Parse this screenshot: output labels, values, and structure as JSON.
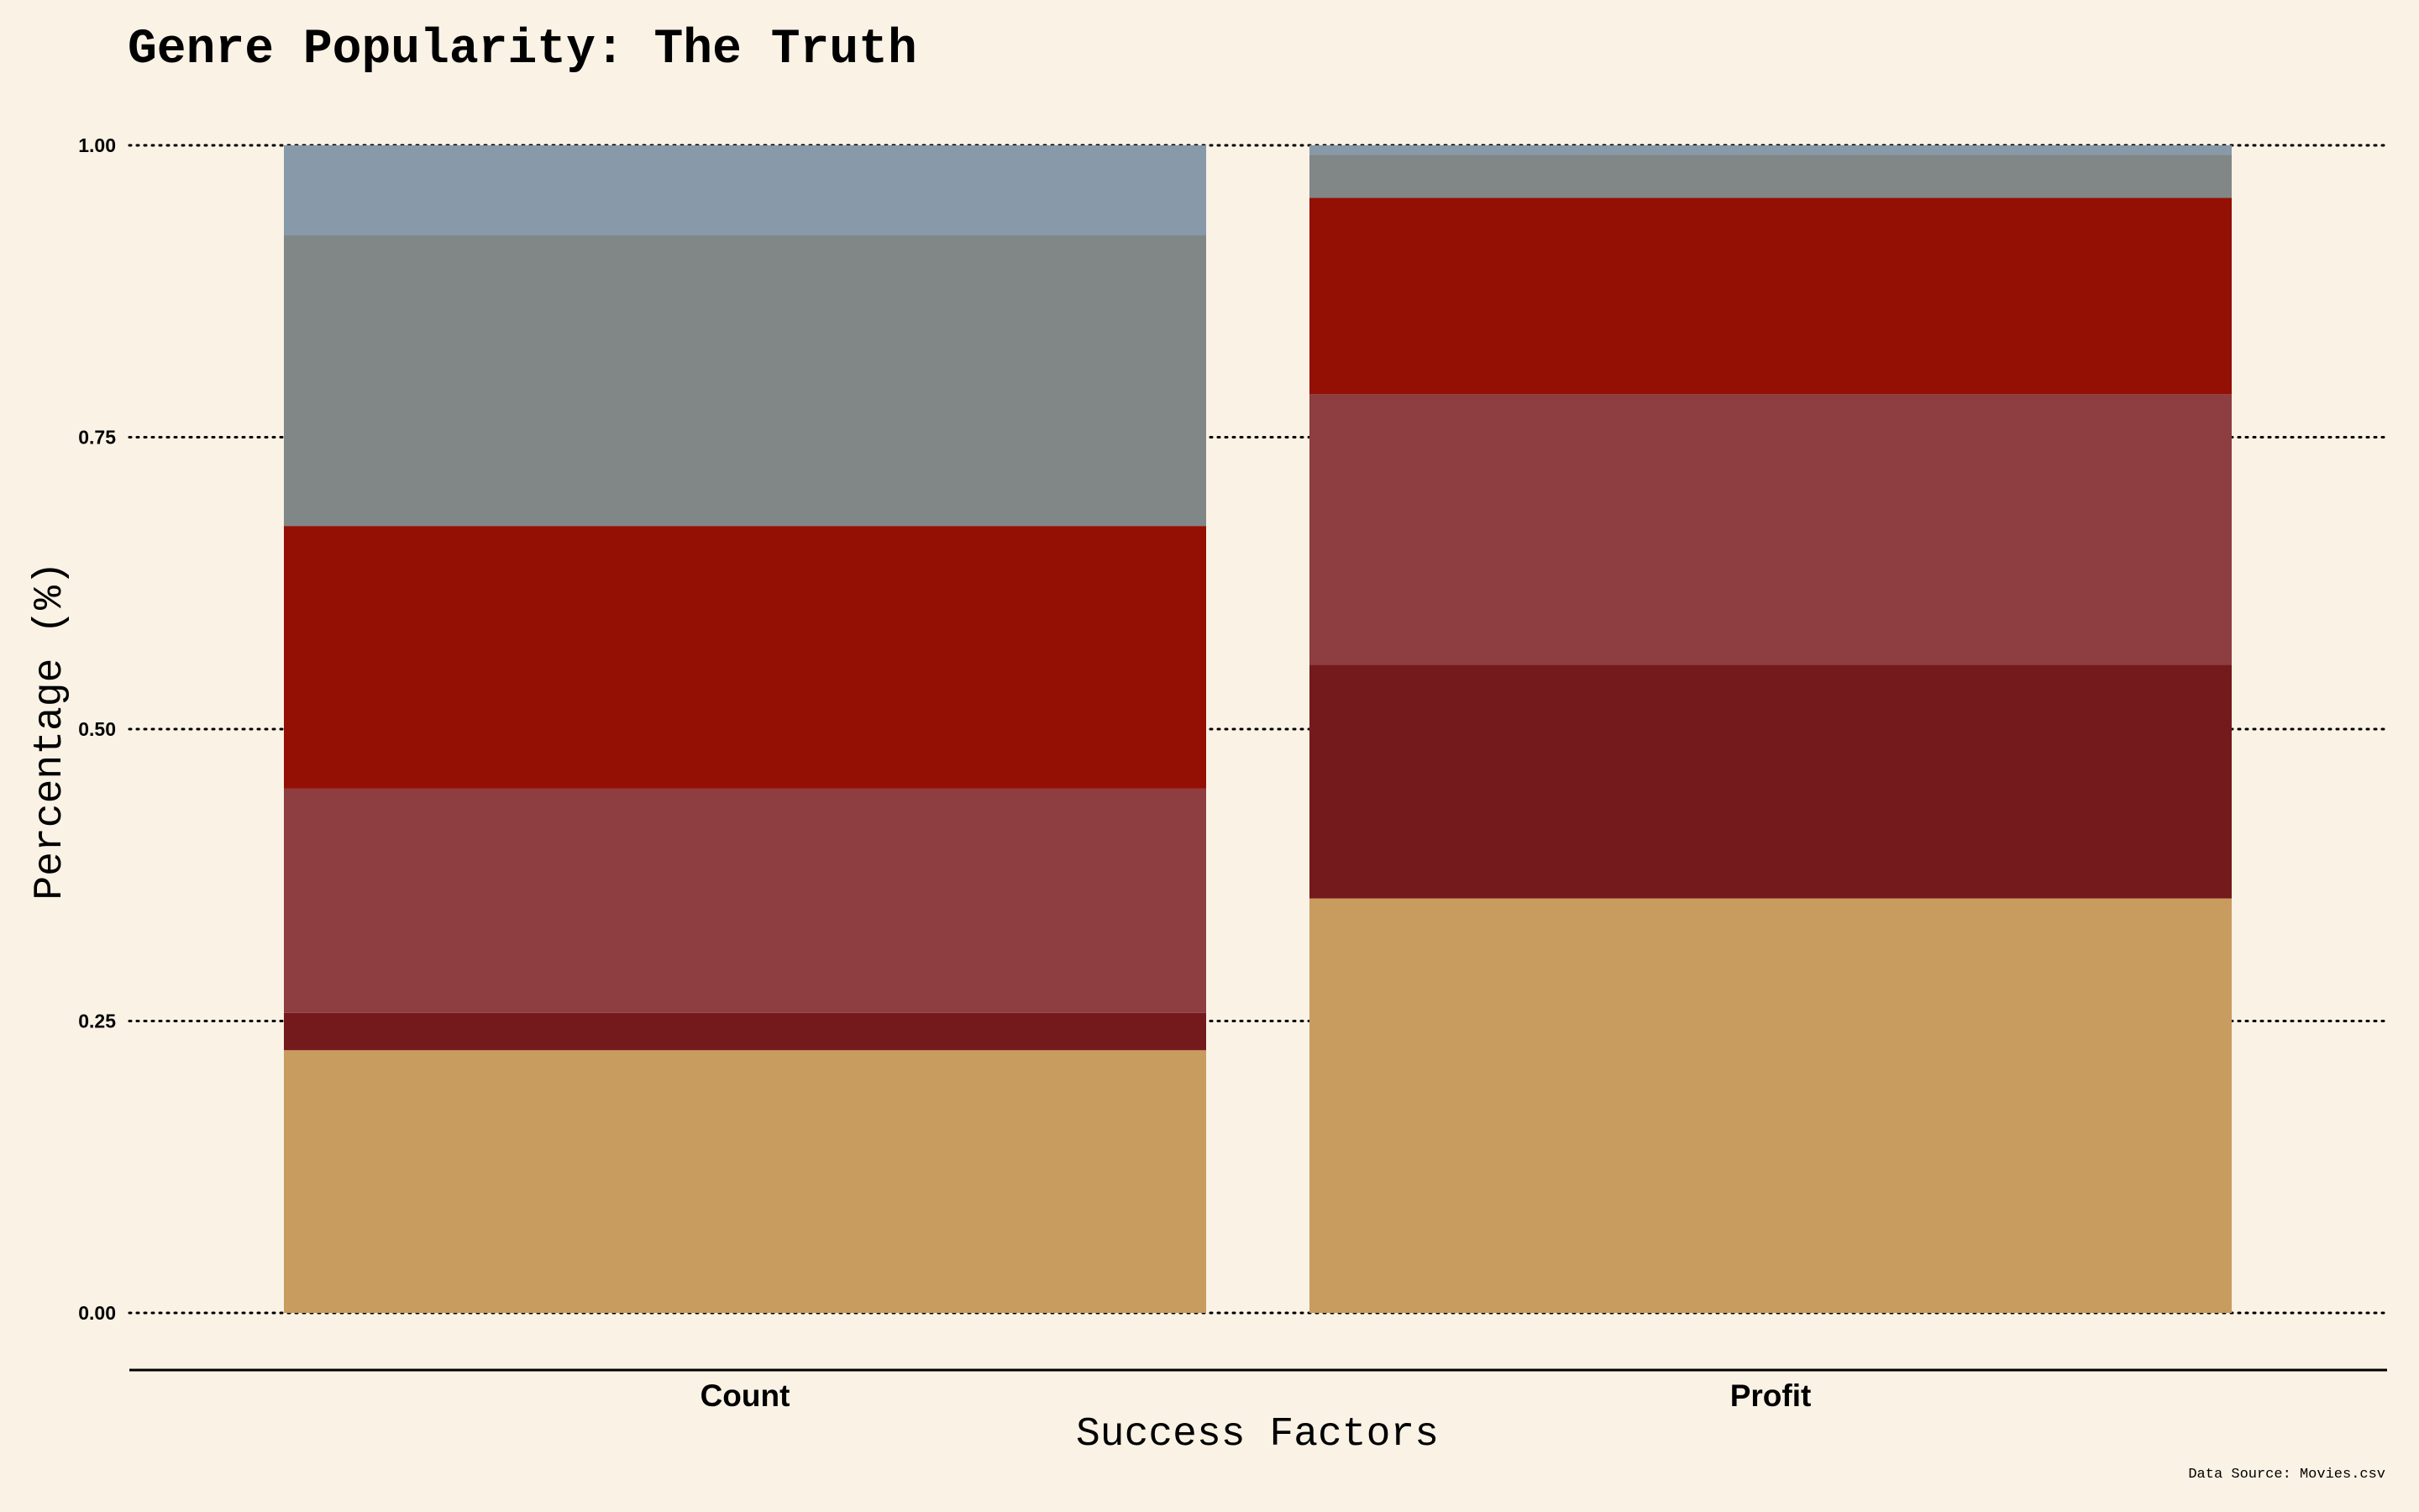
{
  "chart_data": {
    "type": "bar",
    "stacked": true,
    "title": "Genre Popularity: The Truth",
    "xlabel": "Success Factors",
    "ylabel": "Percentage (%)",
    "caption": "Data Source: Movies.csv",
    "ylim": [
      0,
      1
    ],
    "yticks": [
      "0.00",
      "0.25",
      "0.50",
      "0.75",
      "1.00"
    ],
    "grid": "horizontal-dotted",
    "legend": "none",
    "categories": [
      "Count",
      "Profit"
    ],
    "series": [
      {
        "color": "#c89b5f",
        "values": [
          0.225,
          0.355
        ]
      },
      {
        "color": "#741a1c",
        "values": [
          0.032,
          0.2
        ]
      },
      {
        "color": "#8e3d40",
        "values": [
          0.192,
          0.232
        ]
      },
      {
        "color": "#941005",
        "values": [
          0.225,
          0.168
        ]
      },
      {
        "color": "#818787",
        "values": [
          0.249,
          0.037
        ]
      },
      {
        "color": "#8899a9",
        "values": [
          0.077,
          0.008
        ]
      }
    ]
  }
}
